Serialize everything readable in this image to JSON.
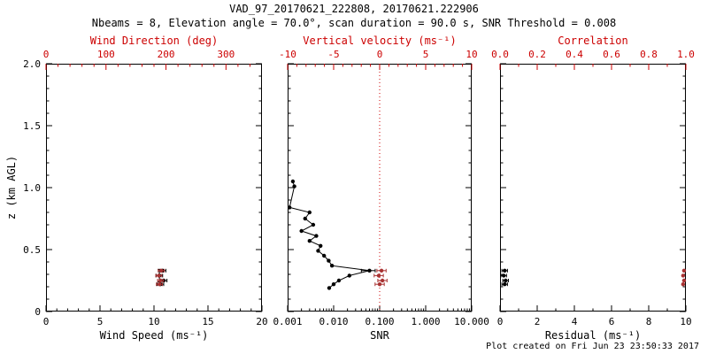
{
  "header": {
    "title": "VAD_97_20170621_222808, 20170621.222906",
    "subtitle": "Nbeams = 8, Elevation angle = 70.0°, scan duration = 90.0 s, SNR Threshold = 0.008"
  },
  "footer": {
    "created_text": "Plot created on Fri Jun 23 23:50:33 2017"
  },
  "colors": {
    "frame_black": "#000000",
    "axis_red": "#cc0000",
    "point_red": "#a83232"
  },
  "chart_data": {
    "type": "scatter",
    "z_axis": {
      "label": "z (km AGL)",
      "min": 0,
      "max": 2,
      "ticks": [
        0,
        0.5,
        1,
        1.5,
        2
      ],
      "tick_labels": [
        "0",
        "0.5",
        "1.0",
        "1.5",
        "2.0"
      ],
      "minor": 4
    },
    "panels": [
      {
        "id": "wind",
        "show_z_labels": true,
        "bottom_axis": {
          "label": "Wind Speed (ms⁻¹)",
          "min": 0,
          "max": 20,
          "scale": "linear",
          "ticks": [
            0,
            5,
            10,
            15,
            20
          ],
          "tick_labels": [
            "0",
            "5",
            "10",
            "15",
            "20"
          ],
          "minor": 4,
          "color": "#000000"
        },
        "top_axis": {
          "label": "Wind Direction (deg)",
          "min": 0,
          "max": 360,
          "scale": "linear",
          "ticks": [
            0,
            100,
            200,
            300
          ],
          "tick_labels": [
            "0",
            "100",
            "200",
            "300"
          ],
          "minor": 4,
          "color": "#cc0000"
        },
        "series": [
          {
            "name": "wind_speed",
            "axis": "bottom",
            "color": "#000000",
            "connect": false,
            "points": [
              {
                "x": 10.8,
                "z": 0.33,
                "xerr": 0.3
              },
              {
                "x": 10.5,
                "z": 0.29,
                "xerr": 0.3,
                "zerr": 0.05
              },
              {
                "x": 10.9,
                "z": 0.25,
                "xerr": 0.3
              },
              {
                "x": 10.6,
                "z": 0.22,
                "xerr": 0.3
              }
            ]
          },
          {
            "name": "wind_direction",
            "axis": "top",
            "color": "#a83232",
            "connect": false,
            "points": [
              {
                "x": 192,
                "z": 0.33,
                "xerr": 5
              },
              {
                "x": 188,
                "z": 0.29,
                "xerr": 5
              },
              {
                "x": 191,
                "z": 0.25,
                "xerr": 5
              },
              {
                "x": 189,
                "z": 0.22,
                "xerr": 5
              }
            ]
          }
        ]
      },
      {
        "id": "snr",
        "show_z_labels": false,
        "bottom_axis": {
          "label": "SNR",
          "min": 0.001,
          "max": 10,
          "scale": "log",
          "ticks": [
            0.001,
            0.01,
            0.1,
            1,
            10
          ],
          "tick_labels": [
            "0.001",
            "0.010",
            "0.100",
            "1.000",
            "10.000"
          ],
          "color": "#000000"
        },
        "top_axis": {
          "label": "Vertical velocity (ms⁻¹)",
          "min": -10,
          "max": 10,
          "scale": "linear",
          "ticks": [
            -10,
            -5,
            0,
            5,
            10
          ],
          "tick_labels": [
            "-10",
            "-5",
            "0",
            "5",
            "10"
          ],
          "minor": 4,
          "color": "#cc0000"
        },
        "refline": {
          "axis": "top",
          "value": 0,
          "color": "#cc0000",
          "dash": "1,3"
        },
        "series": [
          {
            "name": "snr_profile",
            "axis": "bottom",
            "color": "#000000",
            "connect": true,
            "points": [
              {
                "x": 0.0013,
                "z": 1.05
              },
              {
                "x": 0.0014,
                "z": 1.01
              },
              {
                "x": 0.0011,
                "z": 0.84
              },
              {
                "x": 0.003,
                "z": 0.8
              },
              {
                "x": 0.0024,
                "z": 0.75
              },
              {
                "x": 0.0036,
                "z": 0.7
              },
              {
                "x": 0.002,
                "z": 0.65
              },
              {
                "x": 0.0042,
                "z": 0.61
              },
              {
                "x": 0.003,
                "z": 0.57
              },
              {
                "x": 0.0052,
                "z": 0.53
              },
              {
                "x": 0.0046,
                "z": 0.49
              },
              {
                "x": 0.0062,
                "z": 0.45
              },
              {
                "x": 0.0078,
                "z": 0.41
              },
              {
                "x": 0.0092,
                "z": 0.37
              },
              {
                "x": 0.06,
                "z": 0.33,
                "xerr": 0.02
              },
              {
                "x": 0.022,
                "z": 0.29
              },
              {
                "x": 0.013,
                "z": 0.25
              },
              {
                "x": 0.01,
                "z": 0.22
              },
              {
                "x": 0.008,
                "z": 0.19
              }
            ]
          },
          {
            "name": "vertical_velocity",
            "axis": "top",
            "color": "#a83232",
            "connect": false,
            "points": [
              {
                "x": 0.2,
                "z": 0.33,
                "xerr": 0.5
              },
              {
                "x": -0.1,
                "z": 0.29,
                "xerr": 0.5
              },
              {
                "x": 0.3,
                "z": 0.25,
                "xerr": 0.5
              },
              {
                "x": 0.0,
                "z": 0.22,
                "xerr": 0.5
              }
            ]
          }
        ]
      },
      {
        "id": "residual",
        "show_z_labels": false,
        "bottom_axis": {
          "label": "Residual (ms⁻¹)",
          "min": 0,
          "max": 10,
          "scale": "linear",
          "ticks": [
            0,
            2,
            4,
            6,
            8,
            10
          ],
          "tick_labels": [
            "0",
            "2",
            "4",
            "6",
            "8",
            "10"
          ],
          "minor": 1,
          "color": "#000000"
        },
        "top_axis": {
          "label": "Correlation",
          "min": 0,
          "max": 1,
          "scale": "linear",
          "ticks": [
            0,
            0.2,
            0.4,
            0.6,
            0.8,
            1.0
          ],
          "tick_labels": [
            "0.0",
            "0.2",
            "0.4",
            "0.6",
            "0.8",
            "1.0"
          ],
          "minor": 1,
          "color": "#cc0000"
        },
        "series": [
          {
            "name": "residual",
            "axis": "bottom",
            "color": "#000000",
            "connect": false,
            "points": [
              {
                "x": 0.25,
                "z": 0.33,
                "xerr": 0.15
              },
              {
                "x": 0.2,
                "z": 0.29,
                "xerr": 0.15
              },
              {
                "x": 0.3,
                "z": 0.25,
                "xerr": 0.15
              },
              {
                "x": 0.25,
                "z": 0.22,
                "xerr": 0.15
              }
            ]
          },
          {
            "name": "correlation",
            "axis": "top",
            "color": "#a83232",
            "connect": false,
            "points": [
              {
                "x": 0.99,
                "z": 0.33
              },
              {
                "x": 0.985,
                "z": 0.29
              },
              {
                "x": 0.99,
                "z": 0.25
              },
              {
                "x": 0.985,
                "z": 0.22
              }
            ]
          }
        ]
      }
    ]
  }
}
